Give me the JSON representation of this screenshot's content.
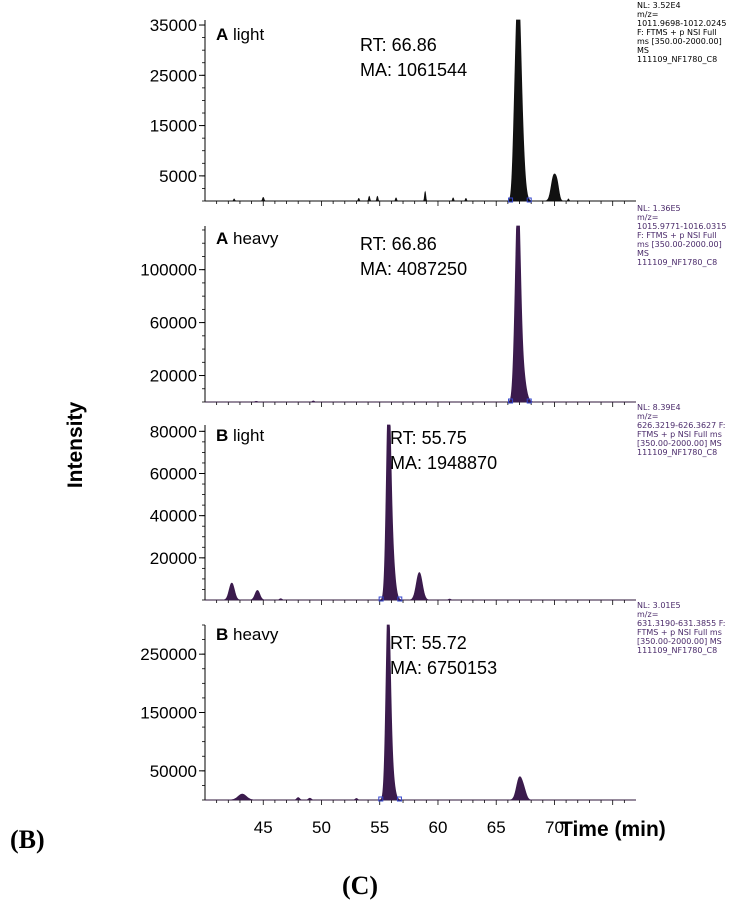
{
  "figure": {
    "label_left": "(B)",
    "label_bottom": "(C)"
  },
  "chart_data": [
    {
      "type": "line",
      "panel_bold": "A",
      "panel_rest": " light",
      "title": "A light",
      "ylabel": "Intensity",
      "xlabel": "Time (min)",
      "xlim": [
        40,
        77
      ],
      "ylim": [
        0,
        36000
      ],
      "yticks": [
        5000,
        15000,
        25000,
        35000
      ],
      "ytick_labels": [
        "5000",
        "15000",
        "25000",
        "35000"
      ],
      "color": "#111111",
      "annotation": [
        "RT: 66.86",
        "MA: 1061544"
      ],
      "info": [
        "NL: 3.52E4",
        "m/z=",
        "1011.9698-1012.0245",
        "F: FTMS + p NSI Full",
        "ms [350.00-2000.00]",
        "MS",
        "111109_NF1780_C8"
      ],
      "peaks": [
        {
          "x": 66.86,
          "y": 35200,
          "w": 0.22
        },
        {
          "x": 67.15,
          "y": 12000,
          "w": 0.25
        },
        {
          "x": 66.55,
          "y": 6000,
          "w": 0.15
        },
        {
          "x": 69.95,
          "y": 5000,
          "w": 0.22
        },
        {
          "x": 70.25,
          "y": 2000,
          "w": 0.15
        },
        {
          "x": 58.9,
          "y": 1800,
          "w": 0.05
        },
        {
          "x": 45.0,
          "y": 700,
          "w": 0.06
        },
        {
          "x": 42.5,
          "y": 400,
          "w": 0.05
        },
        {
          "x": 53.2,
          "y": 500,
          "w": 0.05
        },
        {
          "x": 54.1,
          "y": 900,
          "w": 0.05
        },
        {
          "x": 54.8,
          "y": 900,
          "w": 0.05
        },
        {
          "x": 56.4,
          "y": 600,
          "w": 0.05
        },
        {
          "x": 61.3,
          "y": 600,
          "w": 0.05
        },
        {
          "x": 62.4,
          "y": 500,
          "w": 0.05
        },
        {
          "x": 71.2,
          "y": 400,
          "w": 0.05
        }
      ]
    },
    {
      "type": "line",
      "panel_bold": "A",
      "panel_rest": " heavy",
      "title": "A heavy",
      "xlim": [
        40,
        77
      ],
      "ylim": [
        0,
        133000
      ],
      "yticks": [
        20000,
        60000,
        100000
      ],
      "ytick_labels": [
        "20000",
        "60000",
        "100000"
      ],
      "color": "#3b1b4d",
      "annotation": [
        "RT: 66.86",
        "MA: 4087250"
      ],
      "info": [
        "NL: 1.36E5",
        "m/z=",
        "1015.9771-1016.0315",
        "F: FTMS + p NSI Full",
        "ms [350.00-2000.00]",
        "MS",
        "111109_NF1780_C8"
      ],
      "peaks": [
        {
          "x": 66.86,
          "y": 136000,
          "w": 0.2
        },
        {
          "x": 67.15,
          "y": 30000,
          "w": 0.3
        },
        {
          "x": 66.55,
          "y": 12000,
          "w": 0.15
        },
        {
          "x": 49.3,
          "y": 800,
          "w": 0.08
        },
        {
          "x": 44.4,
          "y": 500,
          "w": 0.1
        }
      ]
    },
    {
      "type": "line",
      "panel_bold": "B",
      "panel_rest": " light",
      "title": "B light",
      "xlim": [
        40,
        77
      ],
      "ylim": [
        0,
        83000
      ],
      "yticks": [
        20000,
        40000,
        60000,
        80000
      ],
      "ytick_labels": [
        "20000",
        "40000",
        "60000",
        "80000"
      ],
      "color": "#3b1b4d",
      "annotation": [
        "RT: 55.75",
        "MA: 1948870"
      ],
      "info": [
        "NL: 8.39E4",
        "m/z=",
        "626.3219-626.3627 F:",
        "FTMS + p NSI Full ms",
        "[350.00-2000.00] MS",
        "111109_NF1780_C8"
      ],
      "peaks": [
        {
          "x": 55.75,
          "y": 83900,
          "w": 0.18
        },
        {
          "x": 56.0,
          "y": 25000,
          "w": 0.25
        },
        {
          "x": 58.4,
          "y": 13000,
          "w": 0.25
        },
        {
          "x": 42.3,
          "y": 8000,
          "w": 0.22
        },
        {
          "x": 44.5,
          "y": 4500,
          "w": 0.2
        },
        {
          "x": 46.5,
          "y": 600,
          "w": 0.1
        },
        {
          "x": 61.0,
          "y": 400,
          "w": 0.1
        }
      ]
    },
    {
      "type": "line",
      "panel_bold": "B",
      "panel_rest": " heavy",
      "title": "B heavy",
      "xlim": [
        40,
        77
      ],
      "ylim": [
        0,
        300000
      ],
      "yticks": [
        50000,
        150000,
        250000
      ],
      "ytick_labels": [
        "50000",
        "150000",
        "250000"
      ],
      "xticks": [
        45,
        50,
        55,
        60,
        65,
        70
      ],
      "xtick_labels": [
        "45",
        "50",
        "55",
        "60",
        "65",
        "70"
      ],
      "color": "#3b1b4d",
      "annotation": [
        "RT: 55.72",
        "MA: 6750153"
      ],
      "info": [
        "NL: 3.01E5",
        "m/z=",
        "631.3190-631.3855 F:",
        "FTMS + p NSI Full ms",
        "[350.00-2000.00] MS",
        "111109_NF1780_C8"
      ],
      "peaks": [
        {
          "x": 55.72,
          "y": 301000,
          "w": 0.18
        },
        {
          "x": 55.95,
          "y": 60000,
          "w": 0.25
        },
        {
          "x": 67.0,
          "y": 38000,
          "w": 0.25
        },
        {
          "x": 67.4,
          "y": 12000,
          "w": 0.2
        },
        {
          "x": 43.2,
          "y": 10000,
          "w": 0.35
        },
        {
          "x": 48.0,
          "y": 4000,
          "w": 0.12
        },
        {
          "x": 49.0,
          "y": 3000,
          "w": 0.12
        },
        {
          "x": 53.0,
          "y": 2500,
          "w": 0.1
        }
      ]
    }
  ]
}
